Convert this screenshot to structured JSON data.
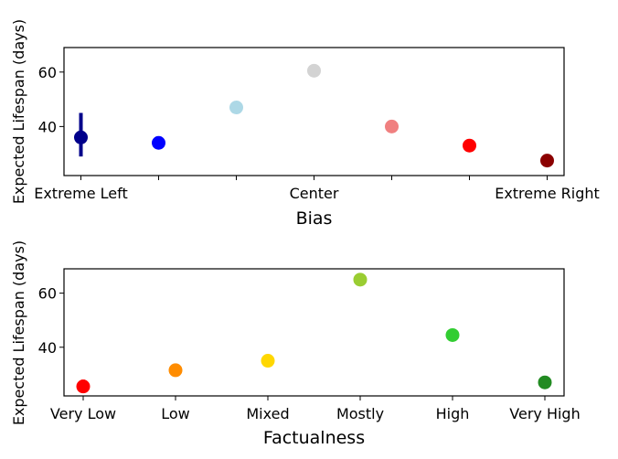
{
  "chart_data": [
    {
      "type": "scatter",
      "xlabel": "Bias",
      "ylabel": "Expected Lifespan (days)",
      "categories": [
        "Extreme Left",
        "",
        "",
        "Center",
        "",
        "",
        "Extreme Right"
      ],
      "values": [
        36,
        34,
        47,
        60.5,
        40,
        33,
        27.5
      ],
      "error_bars": [
        [
          29,
          45
        ],
        null,
        null,
        null,
        null,
        null,
        null
      ],
      "colors": [
        "#00008b",
        "#0000ff",
        "#add8e6",
        "#d3d3d3",
        "#f08080",
        "#ff0000",
        "#8b0000"
      ],
      "ylim": [
        22,
        69
      ],
      "yticks": [
        40,
        60
      ],
      "grid": false
    },
    {
      "type": "scatter",
      "xlabel": "Factualness",
      "ylabel": "Expected Lifespan (days)",
      "categories": [
        "Very Low",
        "Low",
        "Mixed",
        "Mostly",
        "High",
        "Very High"
      ],
      "values": [
        25.5,
        31.5,
        35,
        65,
        44.5,
        27
      ],
      "error_bars": [
        [
          24,
          28
        ],
        null,
        null,
        null,
        null,
        null
      ],
      "colors": [
        "#ff0000",
        "#ff8c00",
        "#ffd700",
        "#9acd32",
        "#32cd32",
        "#228b22"
      ],
      "ylim": [
        22,
        69
      ],
      "yticks": [
        40,
        60
      ],
      "grid": false
    }
  ]
}
